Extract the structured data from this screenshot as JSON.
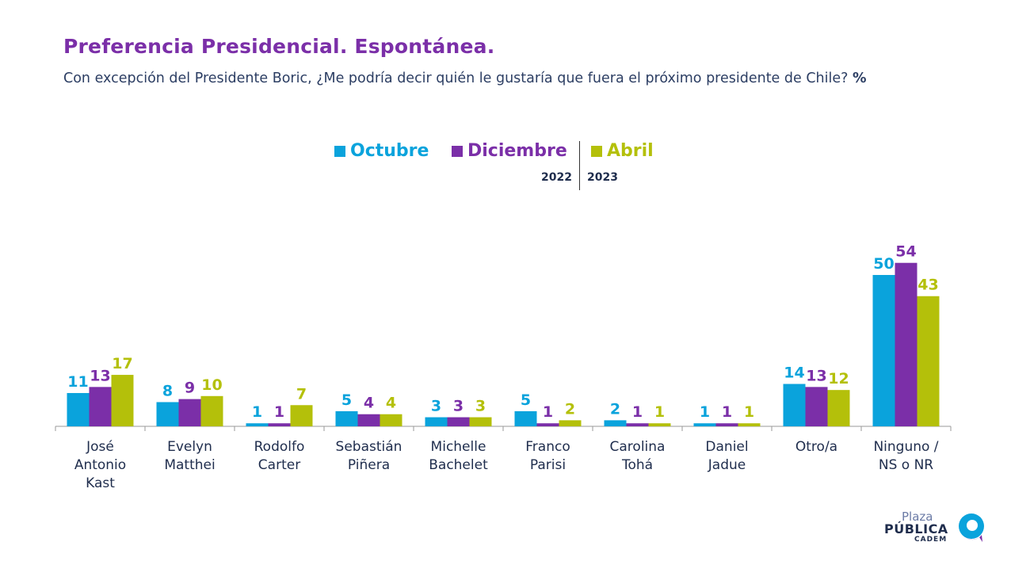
{
  "title": "Preferencia Presidencial. Espontánea.",
  "subtitle": "Con excepción del Presidente Boric, ¿Me podría decir quién le gustaría que fuera el próximo presidente de Chile?",
  "subtitle_unit": "%",
  "legend": {
    "items": [
      {
        "label": "Octubre",
        "color": "#0aa3dc"
      },
      {
        "label": "Diciembre",
        "color": "#7b2fa8"
      },
      {
        "label": "Abril",
        "color": "#b4c00a"
      }
    ],
    "year_left": "2022",
    "year_right": "2023"
  },
  "logo": {
    "plaza": "Plaza",
    "publica": "PÚBLICA",
    "cadem": "CADEM"
  },
  "chart_data": {
    "type": "bar",
    "categories": [
      [
        "José",
        "Antonio",
        "Kast"
      ],
      [
        "Evelyn",
        "Matthei"
      ],
      [
        "Rodolfo",
        "Carter"
      ],
      [
        "Sebastián",
        "Piñera"
      ],
      [
        "Michelle",
        "Bachelet"
      ],
      [
        "Franco",
        "Parisi"
      ],
      [
        "Carolina",
        "Tohá"
      ],
      [
        "Daniel",
        "Jadue"
      ],
      [
        "Otro/a"
      ],
      [
        "Ninguno /",
        "NS o NR"
      ]
    ],
    "series": [
      {
        "name": "Octubre",
        "color": "#0aa3dc",
        "values": [
          11,
          8,
          1,
          5,
          3,
          5,
          2,
          1,
          14,
          50
        ]
      },
      {
        "name": "Diciembre",
        "color": "#7b2fa8",
        "values": [
          13,
          9,
          1,
          4,
          3,
          1,
          1,
          1,
          13,
          54
        ]
      },
      {
        "name": "Abril",
        "color": "#b4c00a",
        "values": [
          17,
          10,
          7,
          4,
          3,
          2,
          1,
          1,
          12,
          43
        ]
      }
    ],
    "ylim": [
      0,
      58
    ],
    "data_labels": true,
    "grid": false
  }
}
